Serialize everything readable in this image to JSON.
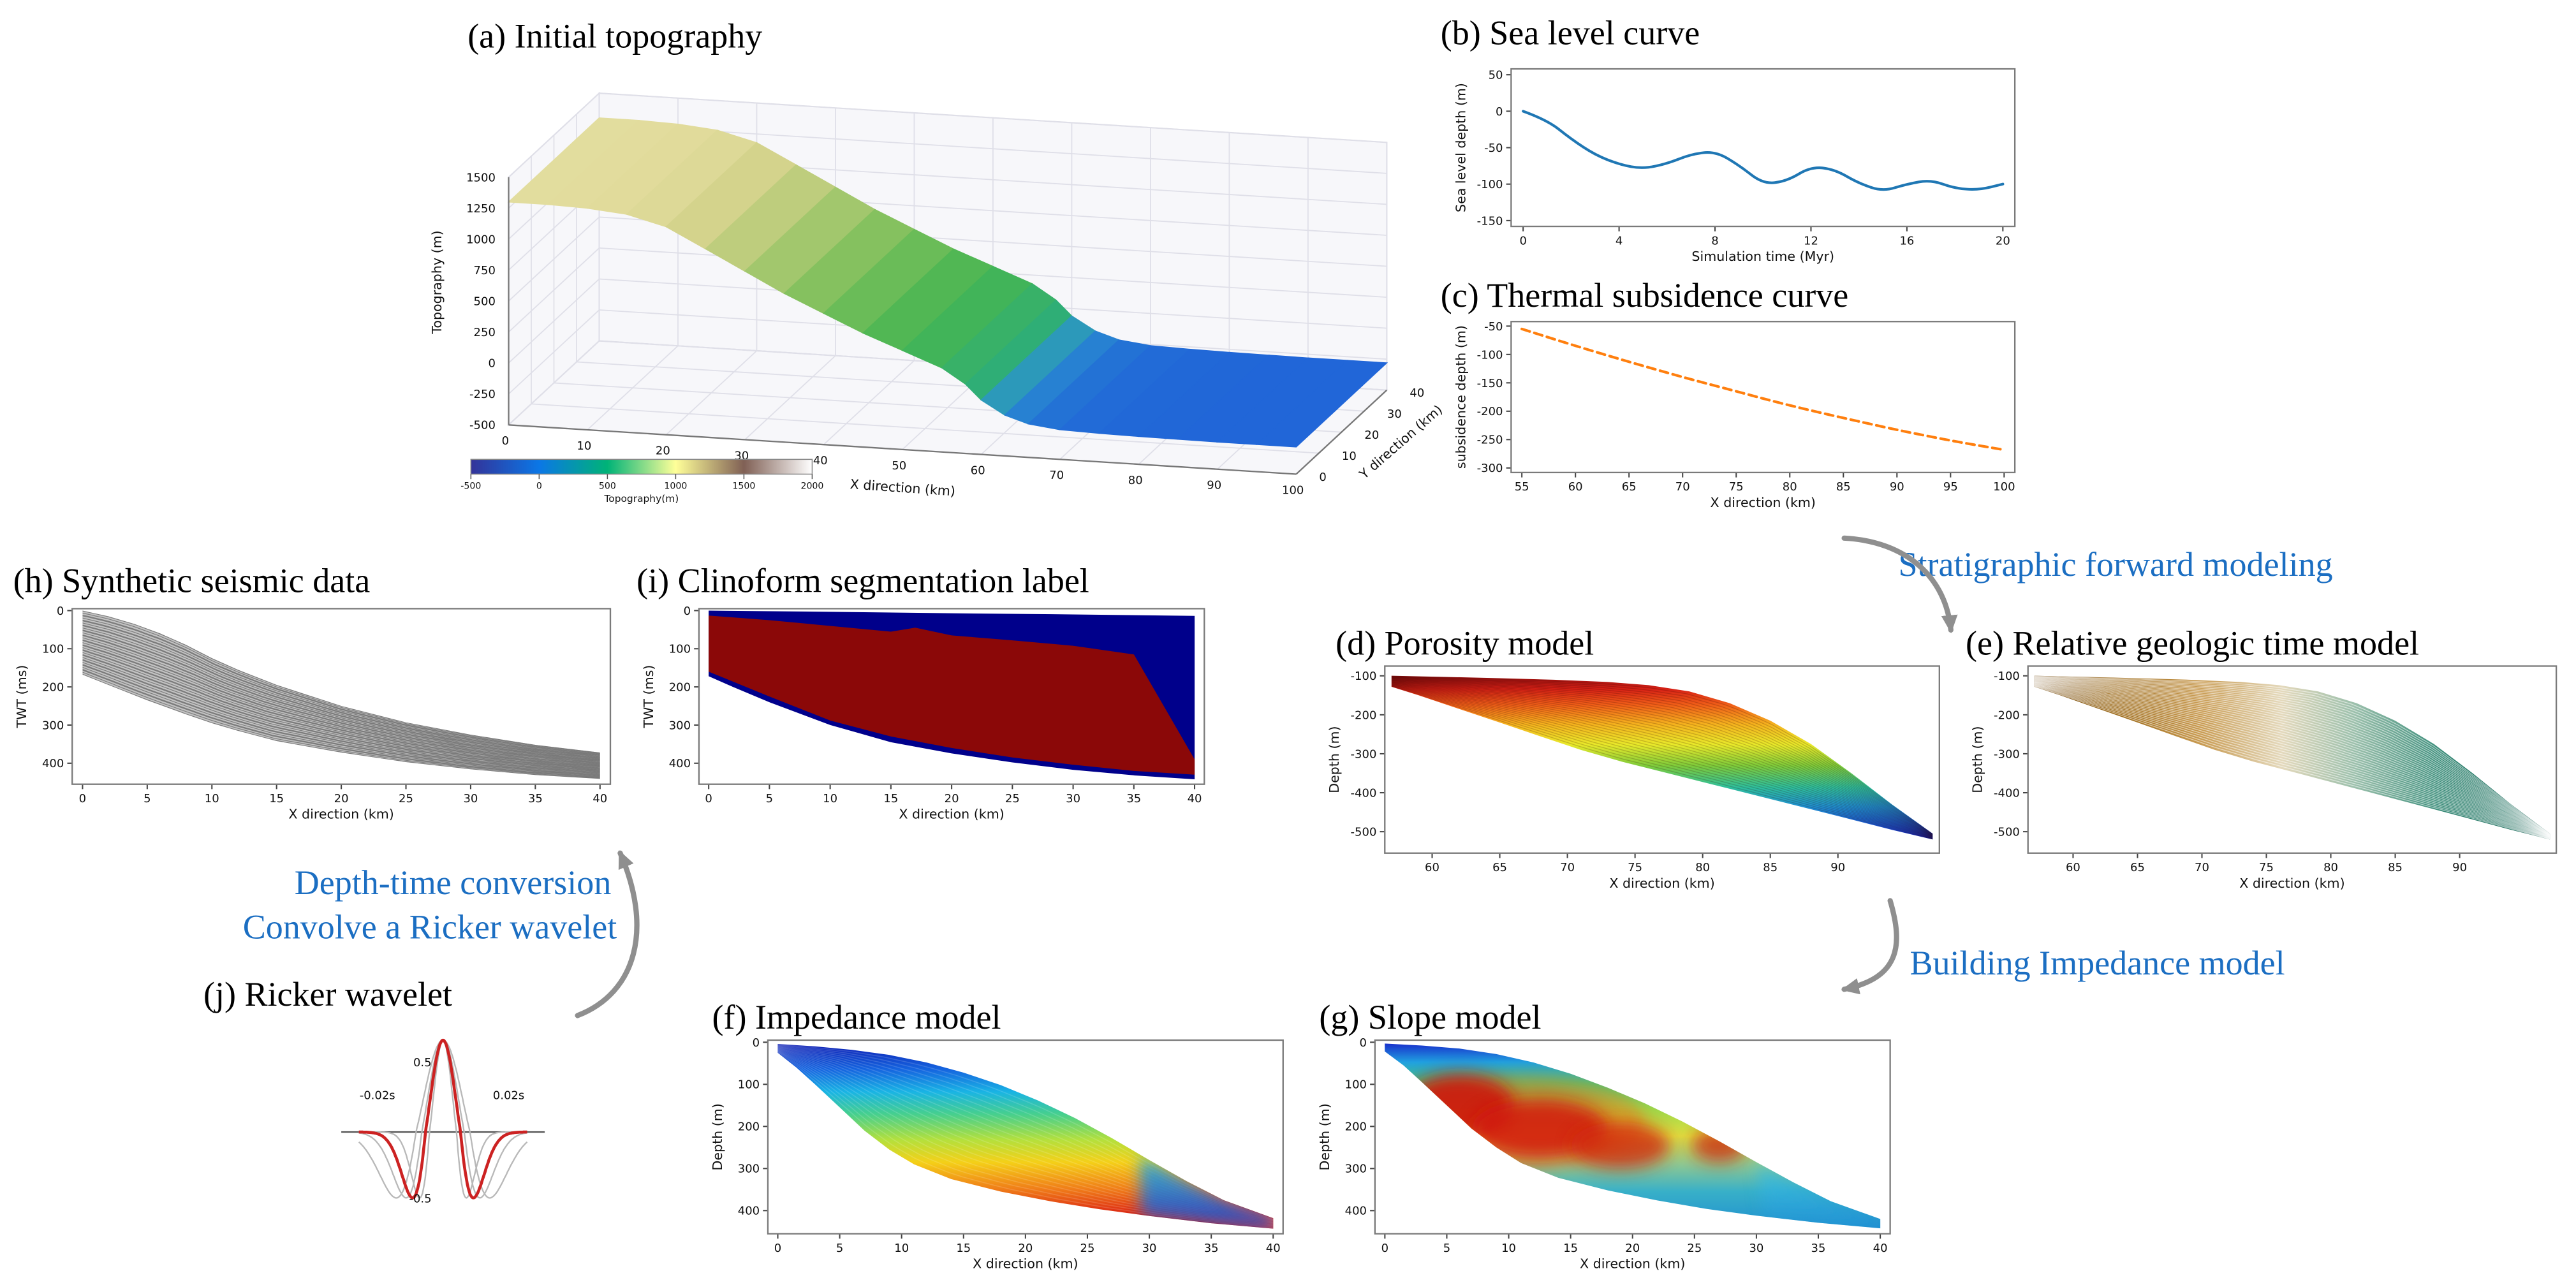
{
  "annotations": {
    "color": "#1b6ec2",
    "arrow_color": "#8f8f8f",
    "items": {
      "sfm": "Stratigraphic forward modeling",
      "bim": "Building Impedance model",
      "dt1": "Depth-time conversion",
      "dt2": "Convolve a Ricker wavelet"
    }
  },
  "chart_data": [
    {
      "panel": "a",
      "type": "surface3d",
      "title": "(a) Initial topography",
      "xlabel": "X direction (km)",
      "ylabel": "Y direction (km)",
      "zlabel": "Topography (m)",
      "xlim": [
        0,
        100
      ],
      "ylim": [
        0,
        40
      ],
      "zlim": [
        -500,
        1500
      ],
      "xticks": [
        0,
        10,
        20,
        30,
        40,
        50,
        60,
        70,
        80,
        90,
        100
      ],
      "yticks": [
        0,
        10,
        20,
        30,
        40
      ],
      "zticks": [
        1500,
        1250,
        1000,
        750,
        500,
        250,
        0,
        -250,
        -500
      ],
      "profile": {
        "x": [
          0,
          5,
          10,
          15,
          20,
          25,
          30,
          35,
          40,
          45,
          50,
          55,
          58,
          60,
          63,
          66,
          70,
          75,
          80,
          85,
          90,
          95,
          100
        ],
        "z": [
          1300,
          1300,
          1290,
          1260,
          1180,
          1020,
          860,
          700,
          560,
          420,
          300,
          180,
          60,
          -60,
          -170,
          -230,
          -260,
          -270,
          -275,
          -278,
          -280,
          -280,
          -280
        ]
      },
      "surface_stops": [
        [
          -300,
          "#1f5fd9"
        ],
        [
          -150,
          "#2b92cf"
        ],
        [
          0,
          "#2fae76"
        ],
        [
          300,
          "#46b552"
        ],
        [
          600,
          "#7fc05c"
        ],
        [
          900,
          "#b9cb79"
        ],
        [
          1100,
          "#d4d38c"
        ],
        [
          1350,
          "#e6dfa2"
        ]
      ],
      "colorbar": {
        "label": "Topography(m)",
        "ticks": [
          -500,
          0,
          500,
          1000,
          1500,
          2000
        ],
        "range": [
          -500,
          2000
        ],
        "stops": [
          "#333399",
          "#0b77e6",
          "#00b377",
          "#ffff99",
          "#806055",
          "#ffffff"
        ]
      }
    },
    {
      "panel": "b",
      "type": "line",
      "title": "(b) Sea level curve",
      "xlabel": "Simulation time (Myr)",
      "ylabel": "Sea level depth (m)",
      "xlim": [
        -0.5,
        20.5
      ],
      "ylim": [
        -158,
        58
      ],
      "xticks": [
        0,
        4,
        8,
        12,
        16,
        20
      ],
      "yticks": [
        50,
        0,
        -50,
        -100,
        -150
      ],
      "line_color": "#1f77b4",
      "dash": false,
      "x": [
        0,
        1,
        2,
        3,
        4,
        5,
        6,
        7,
        8,
        9,
        10,
        11,
        12,
        13,
        14,
        15,
        16,
        17,
        18,
        19,
        20
      ],
      "y": [
        0,
        -12,
        -38,
        -60,
        -73,
        -79,
        -72,
        -59,
        -55,
        -74,
        -100,
        -96,
        -76,
        -80,
        -99,
        -110,
        -100,
        -94,
        -106,
        -108,
        -100
      ]
    },
    {
      "panel": "c",
      "type": "line",
      "title": "(c) Thermal subsidence curve",
      "xlabel": "X direction (km)",
      "ylabel": "subsidence depth (m)",
      "xlim": [
        54,
        101
      ],
      "ylim": [
        -308,
        -42
      ],
      "xticks": [
        55,
        60,
        65,
        70,
        75,
        80,
        85,
        90,
        95,
        100
      ],
      "yticks": [
        -50,
        -100,
        -150,
        -200,
        -250,
        -300
      ],
      "line_color": "#ff7f0e",
      "dash": true,
      "x": [
        55,
        60,
        65,
        70,
        75,
        80,
        85,
        90,
        95,
        100
      ],
      "y": [
        -55,
        -85,
        -113,
        -140,
        -165,
        -190,
        -212,
        -233,
        -252,
        -268
      ]
    },
    {
      "panel": "d",
      "type": "gradient_wedge",
      "title": "(d) Porosity model",
      "xlabel": "X direction (km)",
      "ylabel": "Depth (m)",
      "xlim": [
        56.5,
        97.5
      ],
      "ylim": [
        -555,
        -75
      ],
      "xticks": [
        60,
        65,
        70,
        75,
        80,
        85,
        90
      ],
      "yticks": [
        -100,
        -200,
        -300,
        -400,
        -500
      ],
      "top": {
        "x": [
          57,
          61,
          65,
          69,
          73,
          76,
          79,
          82,
          85,
          88,
          91,
          94,
          97
        ],
        "y": [
          -100,
          -103,
          -106,
          -110,
          -116,
          -124,
          -140,
          -170,
          -215,
          -275,
          -350,
          -430,
          -505
        ]
      },
      "bottom": {
        "x": [
          57,
          59,
          62,
          65,
          68,
          71,
          74,
          78,
          82,
          86,
          90,
          94,
          97
        ],
        "y": [
          -128,
          -150,
          -185,
          -220,
          -255,
          -290,
          -320,
          -355,
          -390,
          -425,
          -460,
          -495,
          -520
        ]
      },
      "gradient": {
        "direction": "vertical",
        "stops": [
          [
            "0%",
            "#8f0f0f"
          ],
          [
            "8%",
            "#d62015"
          ],
          [
            "18%",
            "#f06018"
          ],
          [
            "30%",
            "#f4b41e"
          ],
          [
            "42%",
            "#e8e82a"
          ],
          [
            "55%",
            "#7ecb3a"
          ],
          [
            "68%",
            "#2fbf9a"
          ],
          [
            "80%",
            "#1f8fd0"
          ],
          [
            "100%",
            "#1626c8"
          ]
        ]
      },
      "layers": {
        "count": 30,
        "color": "rgba(40,0,0,0.2)",
        "width": 0.5
      }
    },
    {
      "panel": "e",
      "type": "gradient_wedge",
      "title": "(e) Relative geologic time model",
      "xlabel": "X direction (km)",
      "ylabel": "Depth (m)",
      "xlim": [
        56.5,
        97.5
      ],
      "ylim": [
        -555,
        -75
      ],
      "xticks": [
        60,
        65,
        70,
        75,
        80,
        85,
        90
      ],
      "yticks": [
        -100,
        -200,
        -300,
        -400,
        -500
      ],
      "top": {
        "x": [
          57,
          61,
          65,
          69,
          73,
          76,
          79,
          82,
          85,
          88,
          91,
          94,
          97
        ],
        "y": [
          -100,
          -103,
          -106,
          -110,
          -116,
          -124,
          -140,
          -170,
          -215,
          -275,
          -350,
          -430,
          -505
        ]
      },
      "bottom": {
        "x": [
          57,
          59,
          62,
          65,
          68,
          71,
          74,
          78,
          82,
          86,
          90,
          94,
          97
        ],
        "y": [
          -128,
          -150,
          -185,
          -220,
          -255,
          -290,
          -320,
          -355,
          -390,
          -425,
          -460,
          -495,
          -520
        ]
      },
      "gradient": {
        "direction": "horizontal",
        "stops": [
          [
            "0%",
            "#6e4408"
          ],
          [
            "15%",
            "#9c6a1a"
          ],
          [
            "32%",
            "#c89a50"
          ],
          [
            "48%",
            "#e4d9bc"
          ],
          [
            "62%",
            "#9cc0ac"
          ],
          [
            "78%",
            "#3e8f7c"
          ],
          [
            "92%",
            "#156a58"
          ],
          [
            "100%",
            "#0b5346"
          ]
        ]
      },
      "layers": {
        "count": 34,
        "color": "rgba(255,255,255,0.55)",
        "width": 0.5
      }
    },
    {
      "panel": "f",
      "type": "gradient_wedge",
      "title": "(f) Impedance model",
      "xlabel": "X direction (km)",
      "ylabel": "Depth (m)",
      "xlim": [
        -0.8,
        40.8
      ],
      "ylim": [
        455,
        -5
      ],
      "xticks": [
        0,
        5,
        10,
        15,
        20,
        25,
        30,
        35,
        40
      ],
      "yticks": [
        0,
        100,
        200,
        300,
        400
      ],
      "top": {
        "x": [
          0,
          3,
          6,
          9,
          12,
          15,
          18,
          21,
          24,
          27,
          30,
          33,
          36,
          40
        ],
        "y": [
          4,
          10,
          18,
          30,
          48,
          72,
          102,
          138,
          180,
          228,
          280,
          330,
          375,
          418
        ]
      },
      "bottom": {
        "x": [
          0,
          1.5,
          3,
          5,
          7,
          9,
          11,
          14,
          18,
          22,
          26,
          30,
          35,
          40
        ],
        "y": [
          25,
          60,
          100,
          155,
          210,
          255,
          290,
          325,
          355,
          378,
          397,
          413,
          430,
          443
        ]
      },
      "gradient": {
        "direction": "vertical",
        "stops": [
          [
            "0%",
            "#0f1fb4"
          ],
          [
            "14%",
            "#1566e0"
          ],
          [
            "26%",
            "#19b4e4"
          ],
          [
            "38%",
            "#46cf8e"
          ],
          [
            "52%",
            "#b4e03c"
          ],
          [
            "64%",
            "#f4d018"
          ],
          [
            "78%",
            "#f08018"
          ],
          [
            "90%",
            "#e03414"
          ],
          [
            "100%",
            "#c01210"
          ]
        ]
      },
      "layers": {
        "count": 20,
        "color": "rgba(255,255,255,0.15)",
        "width": 0.6
      },
      "tail": {
        "from": 29,
        "opacity": 0.85,
        "stops": [
          [
            "0%",
            "#20b8e8"
          ],
          [
            "100%",
            "#1840d0"
          ]
        ]
      }
    },
    {
      "panel": "g",
      "type": "slope_wedge",
      "title": "(g) Slope model",
      "xlabel": "X direction (km)",
      "ylabel": "Depth (m)",
      "xlim": [
        -0.8,
        40.8
      ],
      "ylim": [
        455,
        -5
      ],
      "xticks": [
        0,
        5,
        10,
        15,
        20,
        25,
        30,
        35,
        40
      ],
      "yticks": [
        0,
        100,
        200,
        300,
        400
      ],
      "top": {
        "x": [
          0,
          3,
          6,
          9,
          12,
          15,
          18,
          21,
          24,
          27,
          30,
          33,
          36,
          40
        ],
        "y": [
          3,
          8,
          15,
          28,
          48,
          75,
          108,
          145,
          188,
          235,
          285,
          333,
          378,
          420
        ]
      },
      "bottom": {
        "x": [
          0,
          1.5,
          3,
          5,
          7,
          9,
          11,
          14,
          18,
          22,
          26,
          30,
          35,
          40
        ],
        "y": [
          22,
          55,
          95,
          150,
          205,
          250,
          287,
          322,
          352,
          376,
          396,
          412,
          429,
          442
        ]
      },
      "gradient": {
        "direction": "vertical",
        "stops": [
          [
            "0%",
            "#1830cc"
          ],
          [
            "10%",
            "#20a0e0"
          ],
          [
            "22%",
            "#48c878"
          ],
          [
            "36%",
            "#a0d84a"
          ],
          [
            "50%",
            "#e0e040"
          ],
          [
            "65%",
            "#90c890"
          ],
          [
            "80%",
            "#38b0c8"
          ],
          [
            "100%",
            "#2090d0"
          ]
        ]
      },
      "blobs": [
        {
          "cx": 11,
          "cy": 190,
          "rx": 10,
          "ry": 110,
          "color": "#f07818",
          "opacity": 0.5
        },
        {
          "cx": 6,
          "cy": 150,
          "rx": 4.5,
          "ry": 75,
          "color": "#cc1408",
          "opacity": 0.9
        },
        {
          "cx": 12.5,
          "cy": 205,
          "rx": 5.5,
          "ry": 70,
          "color": "#d01808",
          "opacity": 0.85
        },
        {
          "cx": 19,
          "cy": 245,
          "rx": 4,
          "ry": 55,
          "color": "#d02810",
          "opacity": 0.8
        },
        {
          "cx": 27,
          "cy": 245,
          "rx": 2.2,
          "ry": 40,
          "color": "#cc2010",
          "opacity": 0.75
        }
      ],
      "tail": {
        "from": 30,
        "opacity": 0.75,
        "stops": [
          [
            "0%",
            "#40c8e0"
          ],
          [
            "100%",
            "#2090d8"
          ]
        ]
      }
    },
    {
      "panel": "h",
      "type": "seismic_wedge",
      "title": "(h) Synthetic seismic data",
      "xlabel": "X direction (km)",
      "ylabel": "TWT (ms)",
      "xlim": [
        -0.8,
        40.8
      ],
      "ylim": [
        455,
        -5
      ],
      "xticks": [
        0,
        5,
        10,
        15,
        20,
        25,
        30,
        35,
        40
      ],
      "yticks": [
        0,
        100,
        200,
        300,
        400
      ],
      "top": {
        "x": [
          0,
          2,
          4,
          6,
          8,
          10,
          12,
          15,
          20,
          25,
          30,
          35,
          40
        ],
        "y": [
          0,
          15,
          35,
          60,
          90,
          125,
          155,
          195,
          250,
          293,
          325,
          352,
          372
        ]
      },
      "bottom": {
        "x": [
          0,
          2,
          5,
          8,
          10,
          12,
          15,
          20,
          25,
          30,
          35,
          40
        ],
        "y": [
          168,
          195,
          235,
          272,
          295,
          315,
          342,
          372,
          397,
          416,
          431,
          441
        ]
      },
      "fill": "#c2c2c2",
      "stripe": "#6f6f6f",
      "reflector_count": 26
    },
    {
      "panel": "i",
      "type": "segmentation_wedge",
      "title": "(i) Clinoform segmentation label",
      "xlabel": "X direction (km)",
      "ylabel": "TWT (ms)",
      "xlim": [
        -0.8,
        40.8
      ],
      "ylim": [
        455,
        -5
      ],
      "xticks": [
        0,
        5,
        10,
        15,
        20,
        25,
        30,
        35,
        40
      ],
      "yticks": [
        0,
        100,
        200,
        300,
        400
      ],
      "outer_color": "#00008b",
      "inner_color": "#8b0808",
      "outer_top": {
        "x": [
          0,
          10,
          20,
          30,
          40
        ],
        "y": [
          0,
          3,
          7,
          10,
          14
        ]
      },
      "outer_bottom": {
        "x": [
          0,
          2,
          5,
          8,
          10,
          12,
          15,
          20,
          25,
          30,
          35,
          40
        ],
        "y": [
          172,
          200,
          240,
          276,
          300,
          318,
          345,
          374,
          398,
          417,
          432,
          442
        ]
      },
      "inner_top": {
        "x": [
          0,
          5,
          10,
          15,
          17,
          20,
          25,
          30,
          35,
          40
        ],
        "y": [
          13,
          25,
          40,
          55,
          45,
          65,
          78,
          92,
          115,
          390
        ]
      },
      "inner_bottom": {
        "x": [
          0,
          5,
          10,
          15,
          20,
          25,
          30,
          35,
          40
        ],
        "y": [
          160,
          225,
          288,
          330,
          360,
          385,
          404,
          420,
          430
        ]
      }
    },
    {
      "panel": "j",
      "type": "wavelet",
      "title": "(j) Ricker wavelet",
      "labels": {
        "amp_top": "0.5",
        "amp_bottom": "-0.5",
        "left_time": "-0.02s",
        "right_time": "0.02s"
      },
      "main_color": "#cc2222",
      "ghost_color": "#b8b8b8",
      "main_freq": 40,
      "ghost_freqs": [
        26,
        33,
        52
      ]
    }
  ]
}
